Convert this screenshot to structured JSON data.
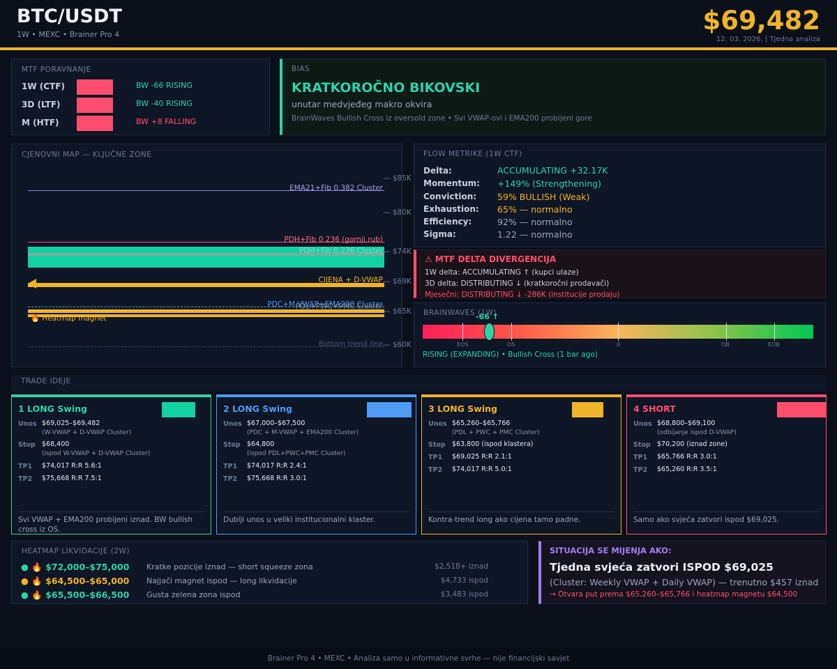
{
  "header": {
    "title": "BTC/USDT",
    "subtitle": "1W  •  MEXC  •  Brainer Pro 4",
    "price": "$69,482",
    "date": "12. 03. 2026.  |  Tjedna analiza"
  },
  "mtf": {
    "title": "MTF PORAVNANJE",
    "rows": [
      {
        "tf": "1W (CTF)",
        "value": "BW -66  RISING",
        "status": "rising"
      },
      {
        "tf": "3D (LTF)",
        "value": "BW -40  RISING",
        "status": "rising"
      },
      {
        "tf": "M  (HTF)",
        "value": "BW +8  FALLING",
        "status": "falling"
      }
    ]
  },
  "bias": {
    "title": "BIAS",
    "headline": "KRATKOROČNO BIKOVSKI",
    "subline": "unutar medvjeđeg makro okvira",
    "note": "BrainWaves Bullish Cross iz oversold zone  •  Svi VWAP-ovi i EMA200 probijeni gore"
  },
  "map": {
    "title": "CJENOVNI MAP  —  KLJUČNE ZONE",
    "prices": [
      "— $85K",
      "— $80K",
      "— $74K",
      "— $69K",
      "— $65K",
      "— $60K"
    ],
    "labels": {
      "ema21": "EMA21+Fib 0.382 Cluster",
      "pdh": "PDH+Fib 0.236 (gornji rub)",
      "pdl_zone": "PDH+Fib 0.236 Cluster",
      "price": "CIJENA + D-VWAP",
      "pdc": "PDC+M-VWAP+EMA200 Cluster",
      "pdl": "PDL+PWC+PMC Cluster",
      "heatmap": "Heatmap magnet",
      "heatmap_icon": "🔥",
      "bottom": "Bottom trend line"
    }
  },
  "flow": {
    "title": "FLOW METRIKE  (1W CTF)",
    "rows": [
      {
        "k": "Delta:",
        "v": "ACCUMULATING  +32.17K",
        "color": "#2ed3a4"
      },
      {
        "k": "Momentum:",
        "v": "+149%  (Strengthening)",
        "color": "#2ed3a4"
      },
      {
        "k": "Conviction:",
        "v": "59% BULLISH  (Weak)",
        "color": "#f0b429"
      },
      {
        "k": "Exhaustion:",
        "v": "65%  —  normalno",
        "color": "#f0b429"
      },
      {
        "k": "Efficiency:",
        "v": "92%  —  normalno",
        "color": "#9aa4b7"
      },
      {
        "k": "Sigma:",
        "v": "1.22  —  normalno",
        "color": "#9aa4b7"
      }
    ]
  },
  "divergence": {
    "title": "⚠  MTF DELTA DIVERGENCIJA",
    "lines": [
      "1W delta: ACCUMULATING ↑   (kupci ulaze)",
      "3D delta: DISTRIBUTING ↓   (kratkoročni prodavači)",
      "Mjesečni: DISTRIBUTING ↓  -286K  (institucije prodaju)"
    ]
  },
  "brainwaves": {
    "title": "BRAINWAVES  (1W)",
    "value": "-66 ↑",
    "level": -66,
    "ticks": [
      "EOS",
      "OS",
      "0",
      "OB",
      "EOB"
    ],
    "status": "RISING (EXPANDING)  •  Bullish Cross (1 bar ago)"
  },
  "trades": {
    "title": "TRADE IDEJE",
    "labels": {
      "entry": "Unos",
      "stop": "Stop",
      "tp1": "TP1",
      "tp2": "TP2"
    },
    "cards": [
      {
        "head": "1  LONG Swing",
        "color": "#2ed3a4",
        "entry": "$69,025–$69,482",
        "entry_sub": "(W-VWAP + D-VWAP Cluster)",
        "stop": "$68,400",
        "stop_sub": "(ispod W-VWAP + D-VWAP Cluster)",
        "tp1": "$74,017  R:R 5.6:1",
        "tp2": "$75,668  R:R 7.5:1",
        "note": "Svi VWAP + EMA200 probijeni iznad. BW bullish cross iz OS."
      },
      {
        "head": "2  LONG Swing",
        "color": "#4e9cf5",
        "entry": "$67,000–$67,500",
        "entry_sub": "(PDC + M-VWAP + EMA200 Cluster)",
        "stop": "$64,800",
        "stop_sub": "(ispod PDL+PWC+PMC Cluster)",
        "tp1": "$74,017  R:R 2.4:1",
        "tp2": "$75,668  R:R 3.0:1",
        "note": "Dublji unos u veliki institucionalni klaster."
      },
      {
        "head": "3  LONG Swing",
        "color": "#f0b429",
        "entry": "$65,260–$65,766",
        "entry_sub": "(PDL + PWC + PMC Cluster)",
        "stop": "$63,800  (ispod klastera)",
        "stop_sub": "",
        "tp1": "$69,025  R:R 2.1:1",
        "tp2": "$74,017  R:R 5.0:1",
        "note": "Kontra-trend long ako cijena tamo padne."
      },
      {
        "head": "4  SHORT",
        "color": "#ff4d6d",
        "entry": "$68,800–$69,100",
        "entry_sub": "(odbijanje ispod D-VWAP)",
        "stop": "$70,200  (iznad zone)",
        "stop_sub": "",
        "tp1": "$65,766  R:R 3.0:1",
        "tp2": "$65,260  R:R 3.5:1",
        "note": "Samo ako svjeća zatvori ispod $69,025."
      }
    ]
  },
  "heatmap": {
    "title": "HEATMAP LIKVIDACIJE  (2W)",
    "icon": "🔥",
    "rows": [
      {
        "range": "$72,000–$75,000",
        "desc": "Kratke pozicije iznad — short squeeze zona",
        "amount": "$2,518+ iznad",
        "color": "#2ed3a4"
      },
      {
        "range": "$64,500–$65,000",
        "desc": "Najjači magnet ispod — long likvidacije",
        "amount": "$4,733 ispod",
        "color": "#f0b429"
      },
      {
        "range": "$65,500–$66,500",
        "desc": "Gusta zelena zona ispod",
        "amount": "$3,483 ispod",
        "color": "#2ed3a4"
      }
    ]
  },
  "situation": {
    "title": "SITUACIJA SE MIJENJA AKO:",
    "headline": "Tjedna svjeća zatvori ISPOD  $69,025",
    "detail": "(Cluster: Weekly VWAP + Daily VWAP)  —  trenutno $457 iznad",
    "consequence": "→  Otvara put prema $65,260–$65,766 i heatmap magnetu $64,500"
  },
  "footer": {
    "text": "Brainer Pro 4  •  MEXC  •  Analiza samo u informativne svrhe — nije financijski savjet"
  }
}
